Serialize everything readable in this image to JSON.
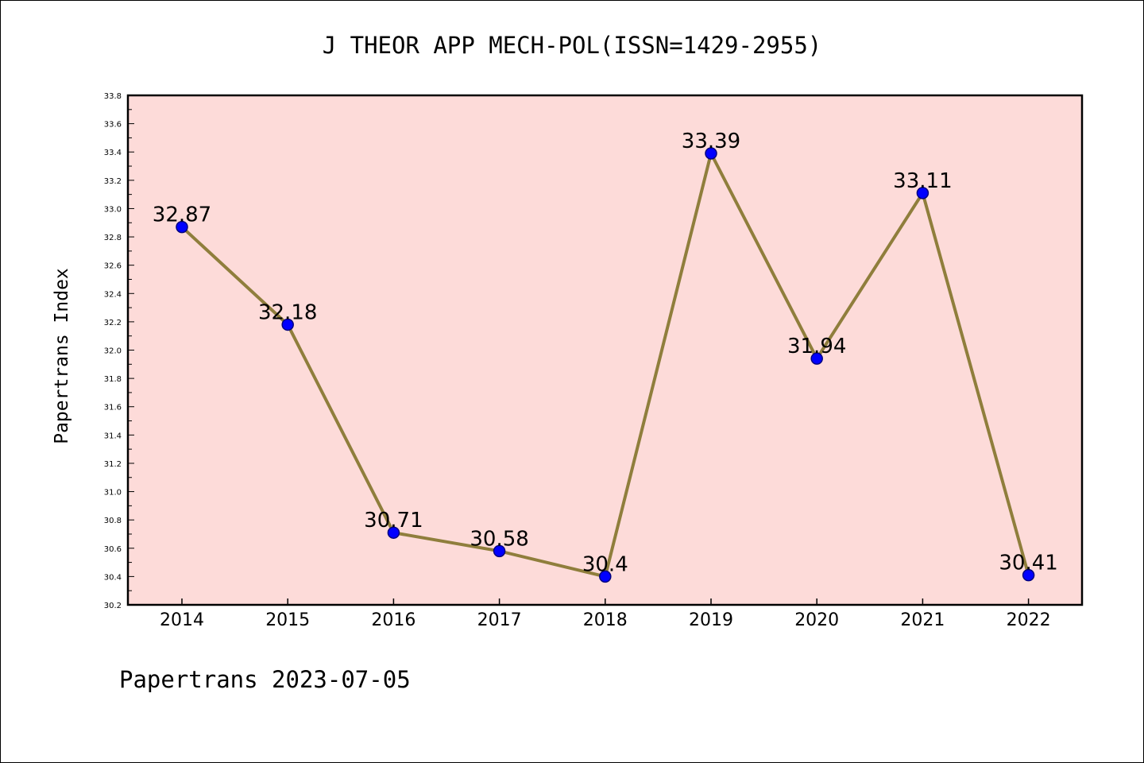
{
  "chart_data": {
    "type": "line",
    "title": "J THEOR APP MECH-POL(ISSN=1429-2955)",
    "ylabel": "Papertrans Index",
    "xlabel": "",
    "footer": "Papertrans 2023-07-05",
    "categories": [
      "2014",
      "2015",
      "2016",
      "2017",
      "2018",
      "2019",
      "2020",
      "2021",
      "2022"
    ],
    "values": [
      32.87,
      32.18,
      30.71,
      30.58,
      30.4,
      33.39,
      31.94,
      33.11,
      30.41
    ],
    "value_labels": [
      "32.87",
      "32.18",
      "30.71",
      "30.58",
      "30.4",
      "33.39",
      "31.94",
      "33.11",
      "30.41"
    ],
    "ylim": [
      30.2,
      33.8
    ],
    "yticks": [
      "30.2",
      "30.4",
      "30.6",
      "30.8",
      "31.0",
      "31.2",
      "31.4",
      "31.6",
      "31.8",
      "32.0",
      "32.2",
      "32.4",
      "32.6",
      "32.8",
      "33.0",
      "33.2",
      "33.4",
      "33.6",
      "33.8"
    ],
    "grid": false,
    "colors": {
      "plot_background": "#fddbd9",
      "line": "#8f7e3c",
      "marker_fill": "#0000ff",
      "marker_stroke": "#000080",
      "axis": "#000000"
    }
  }
}
